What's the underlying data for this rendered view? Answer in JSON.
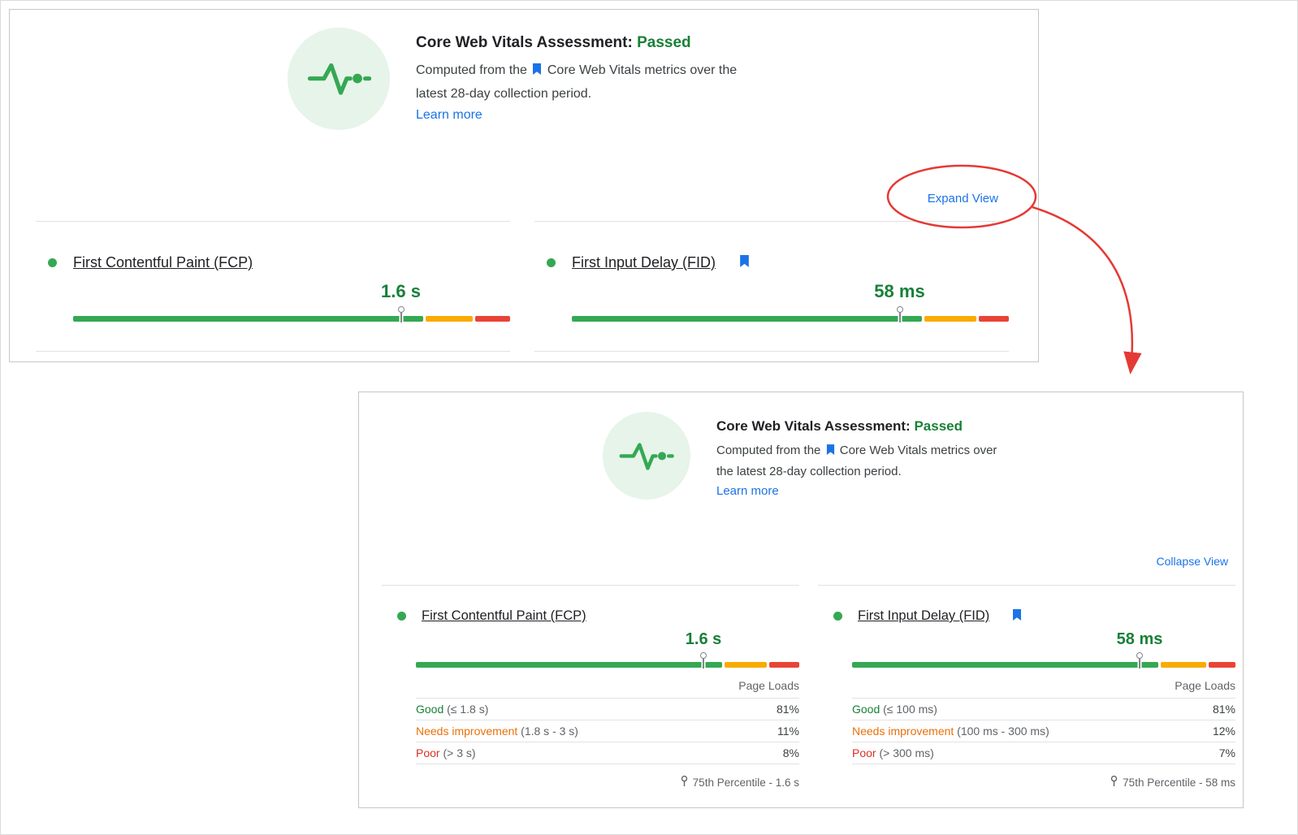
{
  "colors": {
    "green_text": "#188038",
    "bar_good": "#34a853",
    "bar_ni": "#f9ab00",
    "bar_poor": "#ea4335",
    "ni_text": "#e8710a",
    "poor_text": "#d93025",
    "link_blue": "#1a73e8",
    "text_primary": "#202124",
    "text_secondary": "#5f6368",
    "body_text": "#3c4043",
    "divider": "#e2e2e2",
    "panel_border": "#c6c6c6",
    "icon_bg": "#e6f4ea",
    "icon_green": "#34a853",
    "pin_gray": "#80868b",
    "annotation_red": "#e53935"
  },
  "collapsed_panel": {
    "header": {
      "title": "Core Web Vitals Assessment:",
      "status": "Passed",
      "desc_prefix": "Computed from the",
      "desc_link": "Core Web Vitals metrics",
      "desc_suffix": "over the latest 28-day collection period.",
      "learn_more": "Learn more"
    },
    "toggle_label": "Expand View",
    "metrics": [
      {
        "label": "First Contentful Paint (FCP)",
        "value": "1.6 s",
        "bar": {
          "good_pct": 81,
          "ni_pct": 11,
          "poor_pct": 8,
          "pin_pct": 75
        }
      },
      {
        "label": "First Input Delay (FID)",
        "value": "58 ms",
        "bar": {
          "good_pct": 81,
          "ni_pct": 12,
          "poor_pct": 7,
          "pin_pct": 75
        }
      }
    ]
  },
  "expanded_panel": {
    "header": {
      "title": "Core Web Vitals Assessment:",
      "status": "Passed",
      "desc_prefix": "Computed from the",
      "desc_link": "Core Web Vitals metrics",
      "desc_suffix": "over the latest 28-day collection period.",
      "learn_more": "Learn more"
    },
    "toggle_label": "Collapse View",
    "page_loads_label": "Page Loads",
    "metrics": [
      {
        "label": "First Contentful Paint (FCP)",
        "value": "1.6 s",
        "bar": {
          "good_pct": 81,
          "ni_pct": 11,
          "poor_pct": 8,
          "pin_pct": 75
        },
        "rows": [
          {
            "name": "Good",
            "range": "(≤ 1.8 s)",
            "pct": "81%",
            "color": "#188038"
          },
          {
            "name": "Needs improvement",
            "range": "(1.8 s - 3 s)",
            "pct": "11%",
            "color": "#e8710a"
          },
          {
            "name": "Poor",
            "range": "(> 3 s)",
            "pct": "8%",
            "color": "#d93025"
          }
        ],
        "percentile": "75th Percentile - 1.6 s"
      },
      {
        "label": "First Input Delay (FID)",
        "value": "58 ms",
        "bar": {
          "good_pct": 81,
          "ni_pct": 12,
          "poor_pct": 7,
          "pin_pct": 75
        },
        "rows": [
          {
            "name": "Good",
            "range": "(≤ 100 ms)",
            "pct": "81%",
            "color": "#188038"
          },
          {
            "name": "Needs improvement",
            "range": "(100 ms - 300 ms)",
            "pct": "12%",
            "color": "#e8710a"
          },
          {
            "name": "Poor",
            "range": "(> 300 ms)",
            "pct": "7%",
            "color": "#d93025"
          }
        ],
        "percentile": "75th Percentile - 58 ms"
      }
    ]
  }
}
